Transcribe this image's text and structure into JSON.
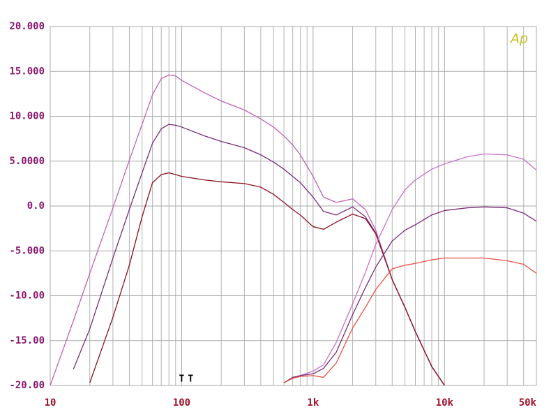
{
  "chart_data": {
    "type": "line",
    "logo": "Ap",
    "xscale": "log",
    "grid": true,
    "x": [
      10,
      15,
      20,
      30,
      40,
      50,
      60,
      70,
      80,
      90,
      100,
      150,
      200,
      300,
      400,
      500,
      600,
      700,
      800,
      1000,
      1200,
      1500,
      2000,
      2500,
      3000,
      4000,
      5000,
      6000,
      8000,
      10000,
      15000,
      20000,
      30000,
      40000,
      50000
    ],
    "xlim": [
      10,
      50000
    ],
    "xticks": [
      10,
      100,
      {
        "value": 1000,
        "label": "1k"
      },
      {
        "value": 10000,
        "label": "10k"
      },
      {
        "value": 50000,
        "label": "50k"
      }
    ],
    "ylim": [
      -20,
      20
    ],
    "yticks": [
      {
        "value": 20,
        "label": "20.000"
      },
      {
        "value": 15,
        "label": "15.000"
      },
      {
        "value": 10,
        "label": "10.000"
      },
      {
        "value": 5,
        "label": "5.0000"
      },
      {
        "value": 0,
        "label": "0.0"
      },
      {
        "value": -5,
        "label": "-5.000"
      },
      {
        "value": -10,
        "label": "-10.00"
      },
      {
        "value": -15,
        "label": "-15.00"
      },
      {
        "value": -20,
        "label": "-20.00"
      }
    ],
    "series": [
      {
        "color": "#c060b8",
        "values": [
          -20,
          -12.8,
          -7.5,
          -0.2,
          5.1,
          9.1,
          12.4,
          14.2,
          14.6,
          14.5,
          14.0,
          12.6,
          11.7,
          10.7,
          9.7,
          8.8,
          7.8,
          6.8,
          5.7,
          3.3,
          1.0,
          0.4,
          0.8,
          -0.4,
          -2.7,
          -8.2,
          -11.3,
          -14.0,
          -17.9,
          -20,
          null,
          null,
          null,
          null,
          null
        ]
      },
      {
        "color": "#7a2a7a",
        "values": [
          null,
          -18.2,
          -13.7,
          -5.8,
          -0.4,
          3.7,
          7.0,
          8.6,
          9.1,
          9.0,
          8.8,
          7.8,
          7.2,
          6.5,
          5.7,
          4.9,
          4.1,
          3.3,
          2.6,
          1.0,
          -0.6,
          -1.0,
          -0.1,
          -1.2,
          -3.0,
          -8.2,
          -11.3,
          -14.0,
          -17.9,
          -20,
          null,
          null,
          null,
          null,
          null
        ]
      },
      {
        "color": "#8a1020",
        "values": [
          null,
          null,
          -19.7,
          -12.4,
          -6.6,
          -1.2,
          2.6,
          3.5,
          3.7,
          3.5,
          3.3,
          2.9,
          2.7,
          2.5,
          2.1,
          1.3,
          0.4,
          -0.4,
          -1.0,
          -2.3,
          -2.6,
          -1.8,
          -0.9,
          -1.4,
          -3.1,
          -8.2,
          -11.3,
          -14.0,
          -17.9,
          -20,
          null,
          null,
          null,
          null,
          null
        ]
      },
      {
        "color": "#c870c8",
        "values": [
          null,
          null,
          null,
          null,
          null,
          null,
          null,
          null,
          null,
          null,
          null,
          null,
          null,
          null,
          null,
          null,
          -19.7,
          -19.1,
          -18.9,
          -18.4,
          -17.7,
          -15.2,
          -10.9,
          -7.4,
          -4.3,
          -0.4,
          1.8,
          2.9,
          4.1,
          4.7,
          5.5,
          5.8,
          5.7,
          5.2,
          4.0
        ]
      },
      {
        "color": "#7a2a7a",
        "values": [
          null,
          null,
          null,
          null,
          null,
          null,
          null,
          null,
          null,
          null,
          null,
          null,
          null,
          null,
          null,
          null,
          -19.7,
          -19.1,
          -18.9,
          -18.7,
          -18.1,
          -16.3,
          -12.1,
          -9.1,
          -6.8,
          -3.9,
          -2.7,
          -2.1,
          -1.0,
          -0.5,
          -0.2,
          -0.1,
          -0.2,
          -0.8,
          -1.7
        ]
      },
      {
        "color": "#e85040",
        "values": [
          null,
          null,
          null,
          null,
          null,
          null,
          null,
          null,
          null,
          null,
          null,
          null,
          null,
          null,
          null,
          null,
          -19.7,
          -19.2,
          -19.0,
          -18.9,
          -19.1,
          -17.5,
          -13.6,
          -11.3,
          -9.3,
          -7.0,
          -6.6,
          -6.4,
          -6.0,
          -5.8,
          -5.8,
          -5.8,
          -6.1,
          -6.5,
          -7.5
        ]
      }
    ],
    "annotations": [
      {
        "text": "T",
        "x": 100
      },
      {
        "text": "T",
        "x": 117
      }
    ]
  }
}
